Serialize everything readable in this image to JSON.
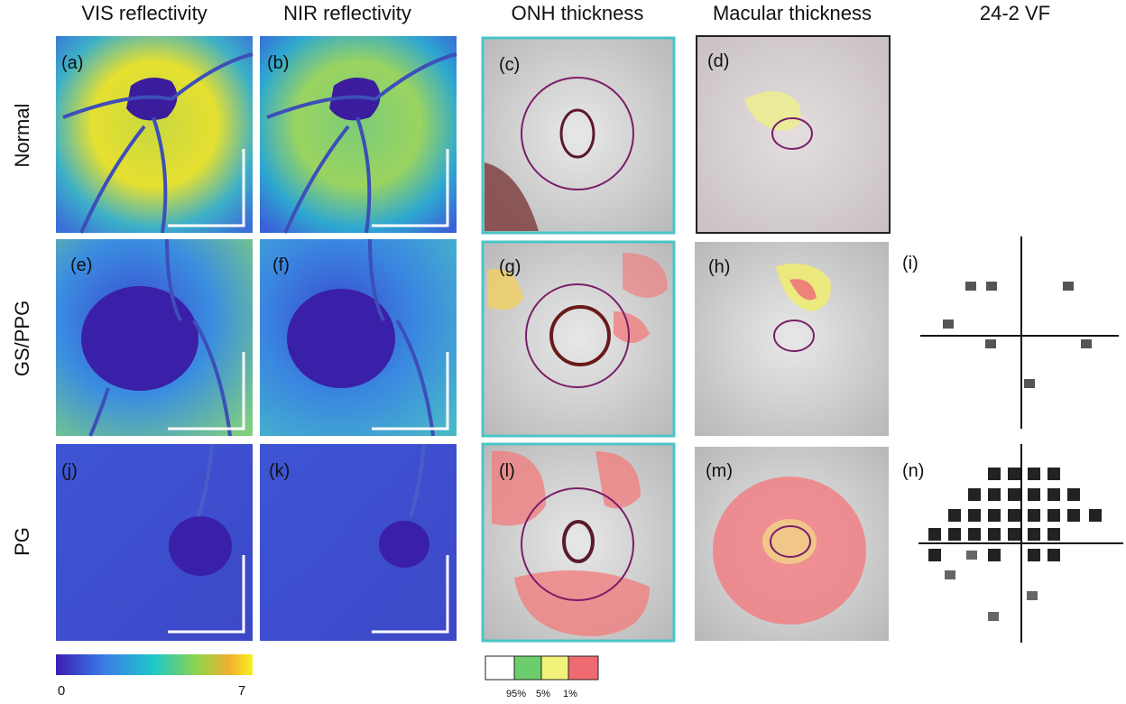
{
  "columns": [
    "VIS reflectivity",
    "NIR reflectivity",
    "ONH thickness",
    "Macular thickness",
    "24-2 VF"
  ],
  "rows": [
    "Normal",
    "GS/PPG",
    "PG"
  ],
  "panels": [
    "(a)",
    "(b)",
    "(c)",
    "(d)",
    "(e)",
    "(f)",
    "(g)",
    "(h)",
    "(i)",
    "(j)",
    "(k)",
    "(l)",
    "(m)",
    "(n)"
  ],
  "colorbar": {
    "min": 0,
    "max": 7
  },
  "legend": [
    "95%",
    "5%",
    "1%"
  ]
}
